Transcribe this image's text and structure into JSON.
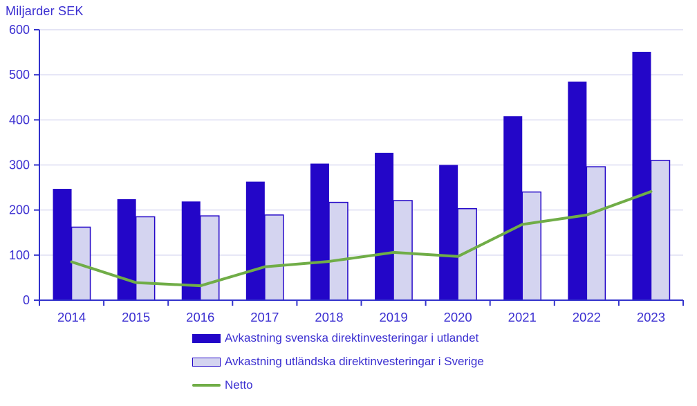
{
  "chart_data": {
    "type": "bar",
    "title": "Miljarder SEK",
    "ylabel": "Miljarder SEK",
    "xlabel": "",
    "categories": [
      "2014",
      "2015",
      "2016",
      "2017",
      "2018",
      "2019",
      "2020",
      "2021",
      "2022",
      "2023"
    ],
    "series": [
      {
        "name": "Avkastning svenska direktinvesteringar i utlandet",
        "type": "bar",
        "style": "solid",
        "color": "#2306c8",
        "values": [
          247,
          224,
          219,
          263,
          303,
          327,
          300,
          408,
          485,
          551
        ]
      },
      {
        "name": "Avkastning utländska direktinvesteringar i Sverige",
        "type": "bar",
        "style": "outlined",
        "fill_color": "#d4d4f0",
        "border_color": "#2306c8",
        "values": [
          162,
          185,
          187,
          189,
          217,
          221,
          203,
          240,
          296,
          310
        ]
      },
      {
        "name": "Netto",
        "type": "line",
        "color": "#70ad47",
        "values": [
          85,
          39,
          32,
          74,
          86,
          106,
          97,
          168,
          189,
          241
        ]
      }
    ],
    "ylim": [
      0,
      600
    ],
    "ytick_step": 100,
    "yticks": [
      "0",
      "100",
      "200",
      "300",
      "400",
      "500",
      "600"
    ],
    "grid": true,
    "legend_position": "bottom"
  },
  "colors": {
    "text": "#3b2fd1",
    "axis": "#3333cc",
    "gridline": "#dcdcf2",
    "background": "#ffffff"
  }
}
